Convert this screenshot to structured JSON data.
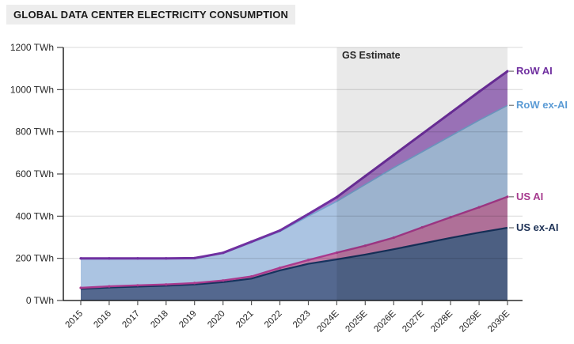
{
  "header": {
    "title": "GLOBAL DATA CENTER ELECTRICITY CONSUMPTION"
  },
  "chart_data": {
    "type": "area",
    "stacked": true,
    "title": "GLOBAL DATA CENTER ELECTRICITY CONSUMPTION",
    "unit": "TWh",
    "grid": true,
    "legend_position": "right",
    "categories": [
      "2015",
      "2016",
      "2017",
      "2018",
      "2019",
      "2020",
      "2021",
      "2022",
      "2023",
      "2024E",
      "2025E",
      "2026E",
      "2027E",
      "2028E",
      "2029E",
      "2030E"
    ],
    "series": [
      {
        "name": "US ex-AI",
        "values": [
          55,
          62,
          66,
          70,
          76,
          87,
          104,
          143,
          174,
          195,
          218,
          243,
          270,
          297,
          322,
          345
        ],
        "fill_color": "#54688f",
        "line_color": "#16335e",
        "label_color": "#1f3357",
        "line_width": 2.2,
        "markers": false
      },
      {
        "name": "US AI",
        "values": [
          5,
          5,
          6,
          6,
          7,
          8,
          10,
          12,
          18,
          32,
          42,
          55,
          77,
          98,
          120,
          147
        ],
        "fill_color": "#c07ba7",
        "line_color": "#aa3a8e",
        "label_color": "#a63a8e",
        "line_width": 2.4,
        "markers": true
      },
      {
        "name": "RoW ex-AI",
        "values": [
          137,
          130,
          126,
          122,
          115,
          128,
          161,
          172,
          208,
          243,
          290,
          332,
          358,
          385,
          413,
          433
        ],
        "fill_color": "#abc4e2",
        "line_color": "#74a3ce",
        "label_color": "#5b9bd5",
        "line_width": 1.6,
        "markers": false
      },
      {
        "name": "RoW AI",
        "values": [
          3,
          3,
          2,
          2,
          3,
          3,
          4,
          5,
          10,
          20,
          40,
          60,
          85,
          110,
          135,
          162
        ],
        "fill_color": "#a87cc8",
        "line_color": "#7030a0",
        "label_color": "#7030a0",
        "line_width": 3,
        "markers": true
      }
    ],
    "y_axis": {
      "min": 0,
      "max": 1200,
      "tick_step": 200,
      "tick_labels": [
        "0 TWh",
        "200 TWh",
        "400 TWh",
        "600 TWh",
        "800 TWh",
        "1000 TWh",
        "1200 TWh"
      ]
    },
    "estimate": {
      "label": "GS Estimate",
      "start_category": "2024E",
      "overlay_color": "rgba(0,0,0,0.085)"
    }
  }
}
